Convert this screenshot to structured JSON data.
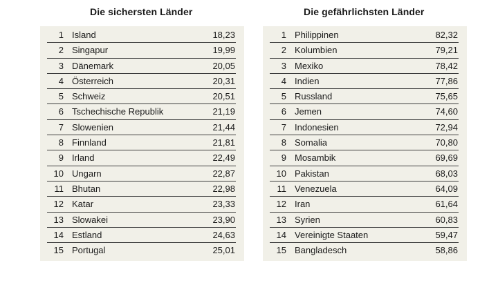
{
  "safest": {
    "title": "Die sichersten Länder",
    "rows": [
      {
        "rank": "1",
        "country": "Island",
        "score": "18,23"
      },
      {
        "rank": "2",
        "country": "Singapur",
        "score": "19,99"
      },
      {
        "rank": "3",
        "country": "Dänemark",
        "score": "20,05"
      },
      {
        "rank": "4",
        "country": "Österreich",
        "score": "20,31"
      },
      {
        "rank": "5",
        "country": "Schweiz",
        "score": "20,51"
      },
      {
        "rank": "6",
        "country": "Tschechische Republik",
        "score": "21,19"
      },
      {
        "rank": "7",
        "country": "Slowenien",
        "score": "21,44"
      },
      {
        "rank": "8",
        "country": "Finnland",
        "score": "21,81"
      },
      {
        "rank": "9",
        "country": "Irland",
        "score": "22,49"
      },
      {
        "rank": "10",
        "country": "Ungarn",
        "score": "22,87"
      },
      {
        "rank": "11",
        "country": "Bhutan",
        "score": "22,98"
      },
      {
        "rank": "12",
        "country": "Katar",
        "score": "23,33"
      },
      {
        "rank": "13",
        "country": "Slowakei",
        "score": "23,90"
      },
      {
        "rank": "14",
        "country": "Estland",
        "score": "24,63"
      },
      {
        "rank": "15",
        "country": "Portugal",
        "score": "25,01"
      }
    ]
  },
  "most_dangerous": {
    "title": "Die gefährlichsten Länder",
    "rows": [
      {
        "rank": "1",
        "country": "Philippinen",
        "score": "82,32"
      },
      {
        "rank": "2",
        "country": "Kolumbien",
        "score": "79,21"
      },
      {
        "rank": "3",
        "country": "Mexiko",
        "score": "78,42"
      },
      {
        "rank": "4",
        "country": "Indien",
        "score": "77,86"
      },
      {
        "rank": "5",
        "country": "Russland",
        "score": "75,65"
      },
      {
        "rank": "6",
        "country": "Jemen",
        "score": "74,60"
      },
      {
        "rank": "7",
        "country": "Indonesien",
        "score": "72,94"
      },
      {
        "rank": "8",
        "country": "Somalia",
        "score": "70,80"
      },
      {
        "rank": "9",
        "country": "Mosambik",
        "score": "69,69"
      },
      {
        "rank": "10",
        "country": "Pakistan",
        "score": "68,03"
      },
      {
        "rank": "11",
        "country": "Venezuela",
        "score": "64,09"
      },
      {
        "rank": "12",
        "country": "Iran",
        "score": "61,64"
      },
      {
        "rank": "13",
        "country": "Syrien",
        "score": "60,83"
      },
      {
        "rank": "14",
        "country": "Vereinigte Staaten",
        "score": "59,47"
      },
      {
        "rank": "15",
        "country": "Bangladesch",
        "score": "58,86"
      }
    ]
  }
}
